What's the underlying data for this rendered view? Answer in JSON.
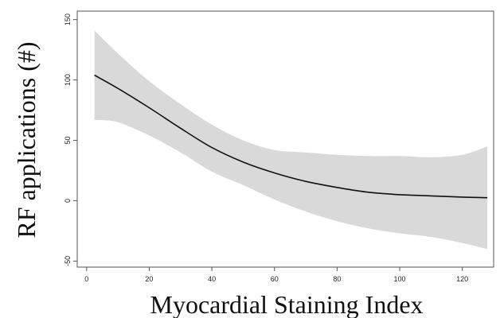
{
  "chart_data": {
    "type": "line",
    "title": "",
    "xlabel": "Myocardial Staining Index",
    "ylabel": "RF applications (#)",
    "xlim": [
      -3,
      130
    ],
    "ylim": [
      -55,
      157
    ],
    "x_ticks": [
      0,
      20,
      40,
      60,
      80,
      100,
      120
    ],
    "y_ticks": [
      -50,
      0,
      50,
      100,
      150
    ],
    "x_tick_labels": [
      "0",
      "20",
      "40",
      "60",
      "80",
      "100",
      "120"
    ],
    "y_tick_labels": [
      "-50",
      "0",
      "50",
      "100",
      "150"
    ],
    "grid": false,
    "legend": "none",
    "series": [
      {
        "x": [
          2.5,
          10,
          20,
          30,
          40,
          50,
          60,
          70,
          80,
          90,
          100,
          110,
          120,
          128
        ],
        "y": [
          104,
          93,
          77,
          60,
          44,
          32,
          23,
          16,
          11,
          7,
          5,
          4,
          3,
          2.5
        ],
        "lower": [
          67,
          65,
          54,
          40,
          24,
          13,
          1,
          -9,
          -17,
          -23,
          -27,
          -30,
          -35,
          -40
        ],
        "upper": [
          141,
          122,
          99,
          80,
          63,
          50,
          42,
          40,
          38,
          37,
          37,
          36,
          38,
          45
        ]
      }
    ],
    "colors": {
      "line": "#111111",
      "band": "#d9d9d9",
      "axis": "#555555"
    }
  }
}
